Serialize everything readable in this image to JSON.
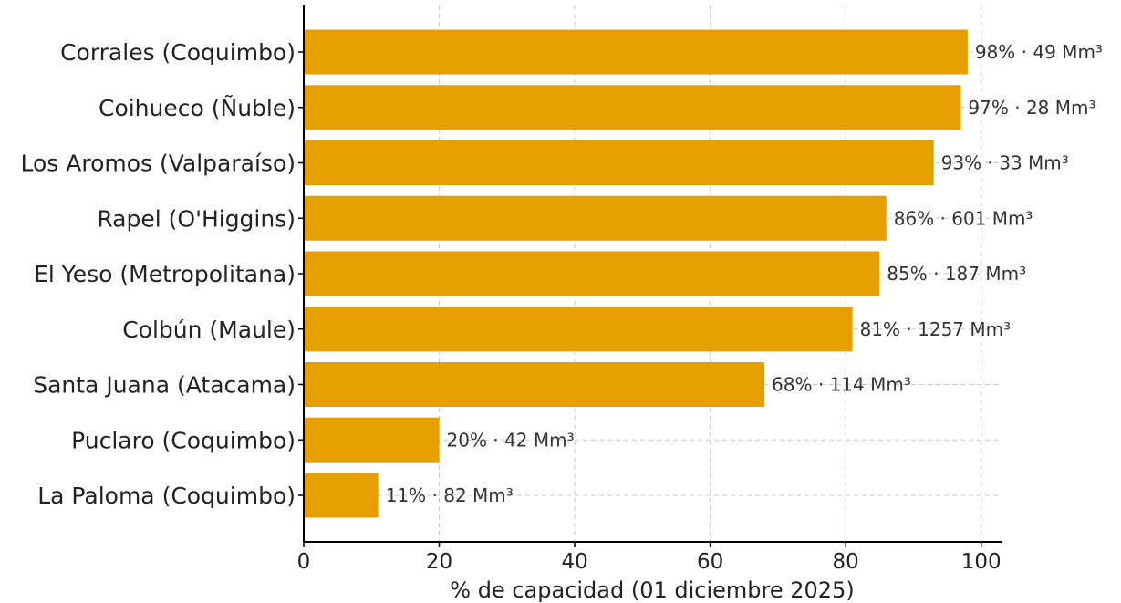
{
  "chart_data": {
    "type": "bar",
    "orientation": "horizontal",
    "title": "",
    "xlabel": "% de capacidad (01 diciembre 2025)",
    "ylabel": "",
    "xlim": [
      0,
      103
    ],
    "xticks": [
      0,
      20,
      40,
      60,
      80,
      100
    ],
    "grid": true,
    "bar_color": "#E69F00",
    "categories": [
      "Corrales (Coquimbo)",
      "Coihueco (Ñuble)",
      "Los Aromos (Valparaíso)",
      "Rapel (O'Higgins)",
      "El Yeso (Metropolitana)",
      "Colbún (Maule)",
      "Santa Juana (Atacama)",
      "Puclaro (Coquimbo)",
      "La Paloma (Coquimbo)"
    ],
    "values": [
      98,
      97,
      93,
      86,
      85,
      81,
      68,
      20,
      11
    ],
    "data_labels": [
      "98% · 49 Mm³",
      "97% · 28 Mm³",
      "93% · 33 Mm³",
      "86% · 601 Mm³",
      "85% · 187 Mm³",
      "81% · 1257 Mm³",
      "68% · 114 Mm³",
      "20% · 42 Mm³",
      "11% · 82 Mm³"
    ]
  }
}
